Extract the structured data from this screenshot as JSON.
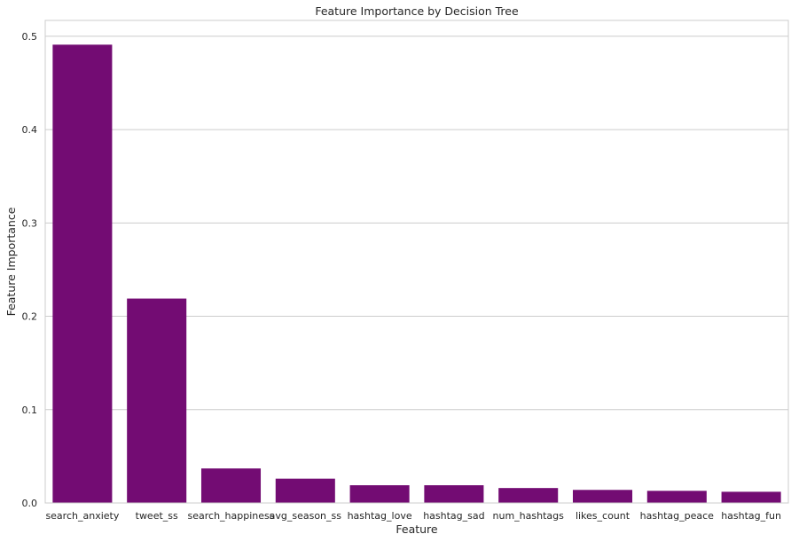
{
  "chart_data": {
    "type": "bar",
    "title": "Feature Importance by Decision Tree",
    "xlabel": "Feature",
    "ylabel": "Feature Importance",
    "categories": [
      "search_anxiety",
      "tweet_ss",
      "search_happiness",
      "avg_season_ss",
      "hashtag_love",
      "hashtag_sad",
      "num_hashtags",
      "likes_count",
      "hashtag_peace",
      "hashtag_fun"
    ],
    "values": [
      0.491,
      0.219,
      0.037,
      0.026,
      0.019,
      0.019,
      0.016,
      0.014,
      0.013,
      0.012
    ],
    "ylim": [
      0,
      0.517
    ],
    "yticks": [
      "0.0",
      "0.1",
      "0.2",
      "0.3",
      "0.4",
      "0.5"
    ],
    "grid": "y",
    "bar_color": "#730c73",
    "grid_color": "#cccccc",
    "frame_color": "#cccccc"
  }
}
